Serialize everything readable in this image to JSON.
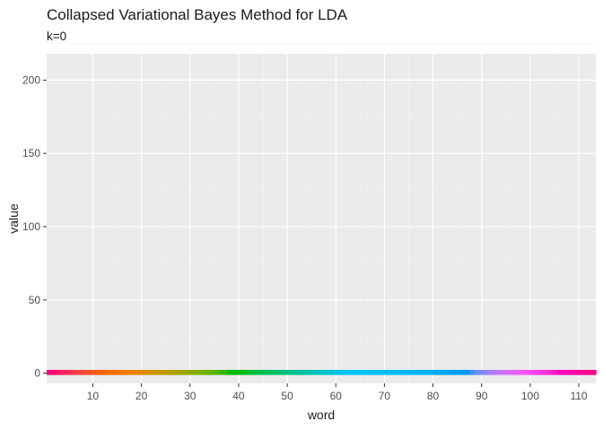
{
  "chart_data": {
    "type": "bar",
    "title": "Collapsed Variational Bayes Method for LDA",
    "subtitle": "k=0",
    "xlabel": "word",
    "ylabel": "value",
    "x_ticks": [
      10,
      20,
      30,
      40,
      50,
      60,
      70,
      80,
      90,
      100,
      110
    ],
    "y_ticks": [
      0,
      50,
      100,
      150,
      200
    ],
    "xlim": [
      0.5,
      113.5
    ],
    "ylim": [
      -7,
      218
    ],
    "x": [
      1,
      2,
      3,
      4,
      5,
      6,
      7,
      8,
      9,
      10,
      11,
      12,
      13,
      14,
      15,
      16,
      17,
      18,
      19,
      20,
      21,
      22,
      23,
      24,
      25,
      26,
      27,
      28,
      29,
      30,
      31,
      32,
      33,
      34,
      35,
      36,
      37,
      38,
      39,
      40,
      41,
      42,
      43,
      44,
      45,
      46,
      47,
      48,
      49,
      50,
      51,
      52,
      53,
      54,
      55,
      56,
      57,
      58,
      59,
      60,
      61,
      62,
      63,
      64,
      65,
      66,
      67,
      68,
      69,
      70,
      71,
      72,
      73,
      74,
      75,
      76,
      77,
      78,
      79,
      80,
      81,
      82,
      83,
      84,
      85,
      86,
      87,
      88,
      89,
      90,
      91,
      92,
      93,
      94,
      95,
      96,
      97,
      98,
      99,
      100,
      101,
      102,
      103,
      104,
      105,
      106,
      107,
      108,
      109,
      110,
      111,
      112,
      113
    ],
    "values": [
      1,
      1,
      1,
      1,
      1,
      1,
      1,
      1,
      1,
      1,
      1,
      1,
      1,
      1,
      1,
      1,
      1,
      1,
      1,
      1,
      1,
      1,
      1,
      1,
      1,
      1,
      1,
      1,
      1,
      1,
      1,
      1,
      1,
      1,
      1,
      1,
      1,
      1,
      1,
      1,
      1,
      1,
      1,
      1,
      1,
      1,
      1,
      1,
      1,
      1,
      1,
      1,
      1,
      1,
      1,
      1,
      1,
      1,
      1,
      1,
      1,
      1,
      1,
      1,
      1,
      1,
      1,
      1,
      1,
      1,
      1,
      1,
      1,
      1,
      1,
      1,
      1,
      1,
      1,
      1,
      1,
      1,
      1,
      1,
      1,
      1,
      1,
      1,
      1,
      1,
      1,
      1,
      1,
      1,
      1,
      1,
      1,
      1,
      1,
      1,
      1,
      1,
      1,
      1,
      1,
      1,
      1,
      1,
      1,
      1,
      1,
      1,
      1
    ],
    "fill_by": "word",
    "palette": "hue",
    "grid": true,
    "legend": "none",
    "colors": {
      "panel": "#ebebeb",
      "grid_major": "#ffffff",
      "grid_minor": "#f4f4f4",
      "text": "#4d4d4d"
    }
  }
}
